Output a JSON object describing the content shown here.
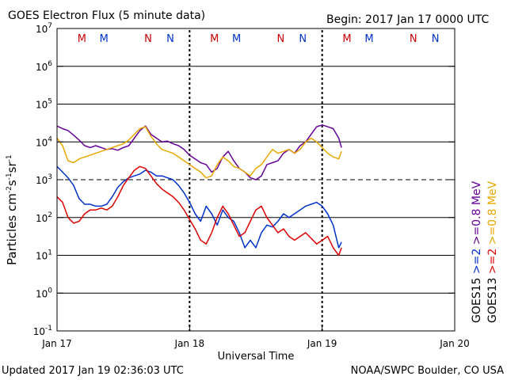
{
  "chart_data": {
    "type": "line",
    "title": "GOES Electron Flux (5 minute data)",
    "begin_label": "Begin: 2017 Jan 17 0000 UTC",
    "xlabel": "Universal Time",
    "ylabel": {
      "base": "Particles cm",
      "e1": "-2",
      "s": "s",
      "e2": "-1",
      "sr": "sr",
      "e3": "-1"
    },
    "y_scale": "log",
    "ylim": [
      -1,
      7
    ],
    "y_ticks": [
      {
        "exp": 7,
        "base": "10",
        "sup": "7"
      },
      {
        "exp": 6,
        "base": "10",
        "sup": "6"
      },
      {
        "exp": 5,
        "base": "10",
        "sup": "5"
      },
      {
        "exp": 4,
        "base": "10",
        "sup": "4"
      },
      {
        "exp": 3,
        "base": "10",
        "sup": "3"
      },
      {
        "exp": 2,
        "base": "10",
        "sup": "2"
      },
      {
        "exp": 1,
        "base": "10",
        "sup": "1"
      },
      {
        "exp": 0,
        "base": "10",
        "sup": "0"
      },
      {
        "exp": -1,
        "base": "10",
        "sup": "-1"
      }
    ],
    "hlines_solid": [
      6,
      5,
      4,
      2,
      1,
      0
    ],
    "hline_dashed": 3,
    "x_domain": [
      0,
      72
    ],
    "x_ticks": [
      {
        "hour": 0,
        "label": "Jan 17"
      },
      {
        "hour": 24,
        "label": "Jan 18"
      },
      {
        "hour": 48,
        "label": "Jan 19"
      },
      {
        "hour": 72,
        "label": "Jan 20"
      }
    ],
    "day_markers": [
      24,
      48
    ],
    "noon_midnight_markers": [
      {
        "hour": 4.5,
        "label": "M",
        "color": "#cc0000"
      },
      {
        "hour": 8.5,
        "label": "M",
        "color": "#0033cc"
      },
      {
        "hour": 16.5,
        "label": "N",
        "color": "#cc0000"
      },
      {
        "hour": 20.5,
        "label": "N",
        "color": "#0033cc"
      },
      {
        "hour": 28.5,
        "label": "M",
        "color": "#cc0000"
      },
      {
        "hour": 32.5,
        "label": "M",
        "color": "#0033cc"
      },
      {
        "hour": 40.5,
        "label": "N",
        "color": "#cc0000"
      },
      {
        "hour": 44.5,
        "label": "N",
        "color": "#0033cc"
      },
      {
        "hour": 52.5,
        "label": "M",
        "color": "#cc0000"
      },
      {
        "hour": 56.5,
        "label": "M",
        "color": "#0033cc"
      },
      {
        "hour": 64.5,
        "label": "N",
        "color": "#cc0000"
      },
      {
        "hour": 68.5,
        "label": "N",
        "color": "#0033cc"
      }
    ],
    "right_labels": [
      {
        "text": "GOES13",
        "color": "#000000"
      },
      {
        "text": ">=2",
        "color": "#dd0000"
      },
      {
        "text": ">=0.8 MeV",
        "color": "#e8a800"
      },
      {
        "text": "GOES15",
        "color": "#000000"
      },
      {
        "text": ">=2",
        "color": "#0033cc"
      },
      {
        "text": ">=0.8 MeV",
        "color": "#660099"
      }
    ],
    "series": [
      {
        "color": "#660099",
        "x": [
          0,
          1,
          2,
          3,
          4,
          5,
          6,
          7,
          8,
          9,
          10,
          11,
          12,
          13,
          14,
          15,
          16,
          17,
          18,
          19,
          20,
          21,
          22,
          23,
          24,
          25,
          26,
          27,
          28,
          29,
          30,
          31,
          32,
          33,
          34,
          35,
          36,
          37,
          38,
          39,
          40,
          41,
          42,
          43,
          44,
          45,
          46,
          47,
          48,
          49,
          50,
          51,
          51.5
        ],
        "y": [
          4.42,
          4.35,
          4.3,
          4.18,
          4.05,
          3.9,
          3.85,
          3.9,
          3.85,
          3.8,
          3.82,
          3.78,
          3.85,
          3.9,
          4.1,
          4.3,
          4.42,
          4.2,
          4.1,
          4.0,
          4.02,
          3.95,
          3.9,
          3.8,
          3.65,
          3.55,
          3.45,
          3.4,
          3.2,
          3.3,
          3.6,
          3.75,
          3.5,
          3.3,
          3.2,
          3.05,
          3.0,
          3.1,
          3.4,
          3.45,
          3.5,
          3.7,
          3.8,
          3.7,
          3.9,
          4.0,
          4.2,
          4.4,
          4.45,
          4.4,
          4.35,
          4.1,
          3.85
        ]
      },
      {
        "color": "#e8a800",
        "x": [
          0,
          1,
          2,
          3,
          4,
          5,
          6,
          7,
          8,
          9,
          10,
          11,
          12,
          13,
          14,
          15,
          16,
          17,
          18,
          19,
          20,
          21,
          22,
          23,
          24,
          25,
          26,
          27,
          28,
          29,
          30,
          31,
          32,
          33,
          34,
          35,
          36,
          37,
          38,
          39,
          40,
          41,
          42,
          43,
          44,
          45,
          46,
          47,
          48,
          49,
          50,
          51,
          51.5
        ],
        "y": [
          4.1,
          3.9,
          3.5,
          3.45,
          3.55,
          3.6,
          3.65,
          3.7,
          3.75,
          3.8,
          3.85,
          3.9,
          3.95,
          4.05,
          4.2,
          4.35,
          4.4,
          4.15,
          3.95,
          3.8,
          3.75,
          3.7,
          3.6,
          3.5,
          3.4,
          3.3,
          3.2,
          3.05,
          3.1,
          3.4,
          3.6,
          3.5,
          3.35,
          3.3,
          3.2,
          3.1,
          3.3,
          3.4,
          3.6,
          3.8,
          3.7,
          3.75,
          3.8,
          3.7,
          3.8,
          4.0,
          4.1,
          4.0,
          3.85,
          3.7,
          3.6,
          3.55,
          3.75
        ]
      },
      {
        "color": "#0033cc",
        "x": [
          0,
          1,
          2,
          3,
          4,
          5,
          6,
          7,
          8,
          9,
          10,
          11,
          12,
          13,
          14,
          15,
          16,
          17,
          18,
          19,
          20,
          21,
          22,
          23,
          24,
          25,
          26,
          27,
          28,
          29,
          30,
          31,
          32,
          33,
          34,
          35,
          36,
          37,
          38,
          39,
          40,
          41,
          42,
          43,
          44,
          45,
          46,
          47,
          48,
          49,
          50,
          51,
          51.5
        ],
        "y": [
          3.35,
          3.2,
          3.05,
          2.85,
          2.5,
          2.35,
          2.35,
          2.3,
          2.3,
          2.35,
          2.55,
          2.8,
          2.95,
          3.05,
          3.1,
          3.15,
          3.25,
          3.2,
          3.1,
          3.1,
          3.05,
          3.0,
          2.85,
          2.65,
          2.4,
          2.1,
          1.9,
          2.3,
          2.1,
          1.8,
          2.2,
          2.0,
          1.9,
          1.6,
          1.2,
          1.4,
          1.2,
          1.6,
          1.8,
          1.75,
          1.9,
          2.1,
          2.0,
          2.1,
          2.2,
          2.3,
          2.35,
          2.4,
          2.3,
          2.1,
          1.8,
          1.2,
          1.35
        ]
      },
      {
        "color": "#dd0000",
        "x": [
          0,
          1,
          2,
          3,
          4,
          5,
          6,
          7,
          8,
          9,
          10,
          11,
          12,
          13,
          14,
          15,
          16,
          17,
          18,
          19,
          20,
          21,
          22,
          23,
          24,
          25,
          26,
          27,
          28,
          29,
          30,
          31,
          32,
          33,
          34,
          35,
          36,
          37,
          38,
          39,
          40,
          41,
          42,
          43,
          44,
          45,
          46,
          47,
          48,
          49,
          50,
          51,
          51.5
        ],
        "y": [
          2.55,
          2.4,
          2.0,
          1.85,
          1.9,
          2.1,
          2.2,
          2.2,
          2.25,
          2.2,
          2.3,
          2.55,
          2.85,
          3.05,
          3.25,
          3.35,
          3.3,
          3.1,
          2.9,
          2.75,
          2.65,
          2.55,
          2.4,
          2.2,
          1.95,
          1.7,
          1.4,
          1.3,
          1.6,
          2.0,
          2.3,
          2.1,
          1.8,
          1.5,
          1.6,
          1.9,
          2.2,
          2.3,
          2.0,
          1.8,
          1.6,
          1.7,
          1.5,
          1.4,
          1.5,
          1.6,
          1.45,
          1.3,
          1.4,
          1.5,
          1.2,
          1.0,
          1.2
        ]
      }
    ]
  },
  "footer": {
    "updated": "Updated 2017 Jan 19 02:36:03 UTC",
    "credit": "NOAA/SWPC Boulder, CO USA"
  }
}
